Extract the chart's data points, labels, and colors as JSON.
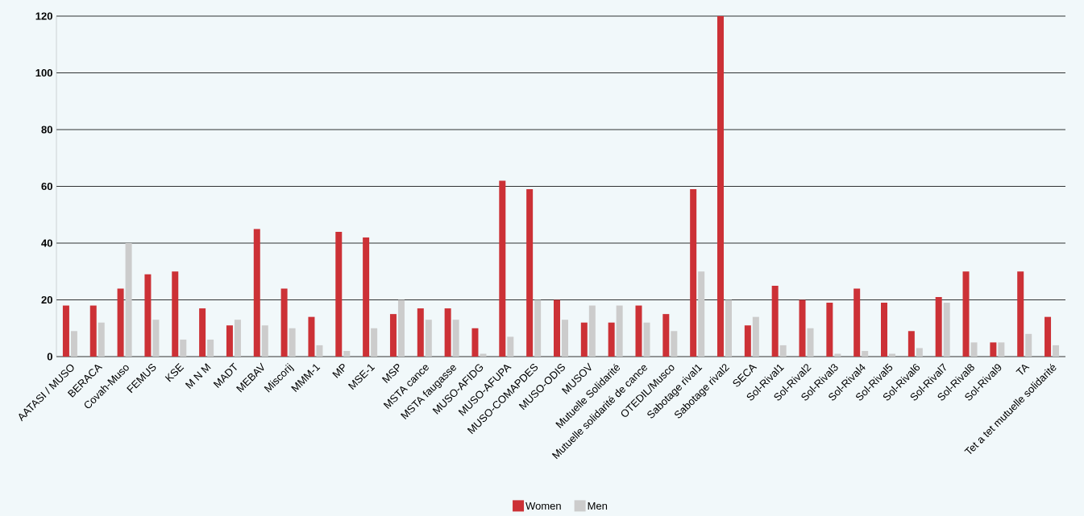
{
  "chart_data": {
    "type": "bar",
    "categories": [
      "AATASI / MUSO",
      "BERACA",
      "Covah-Muso",
      "FEMUS",
      "KSE",
      "M N M",
      "MADT",
      "MEBAV",
      "Miscorij",
      "MMM-1",
      "MP",
      "MSE-1",
      "MSP",
      "MSTA cance",
      "MSTA faugasse",
      "MUSO-AFIDG",
      "MUSO-AFUPA",
      "MUSO-COMAPDES",
      "MUSO-ODIS",
      "MUSOV",
      "Mutuelle Solidarité",
      "Mutuelle solidarité de cance",
      "OTEDIL/Musco",
      "Sabotage rival1",
      "Sabotage rival2",
      "SECA",
      "Sol-Rival1",
      "Sol-Rival2",
      "Sol-Rival3",
      "Sol-Rival4",
      "Sol-Rival5",
      "Sol-Rival6",
      "Sol-Rival7",
      "Sol-Rival8",
      "Sol-Rival9",
      "TA",
      "Tet a tet mutuelle solidarité"
    ],
    "series": [
      {
        "name": "Women",
        "color": "#cc3136",
        "values": [
          18,
          18,
          24,
          29,
          30,
          17,
          11,
          45,
          24,
          14,
          44,
          42,
          15,
          17,
          17,
          10,
          62,
          59,
          20,
          12,
          12,
          18,
          15,
          59,
          120,
          11,
          25,
          20,
          19,
          24,
          19,
          9,
          21,
          30,
          5,
          30,
          14
        ]
      },
      {
        "name": "Men",
        "color": "#cccccc",
        "values": [
          9,
          12,
          40,
          13,
          6,
          6,
          13,
          11,
          10,
          4,
          2,
          10,
          20,
          13,
          13,
          1,
          7,
          20,
          13,
          18,
          18,
          12,
          9,
          30,
          20,
          14,
          4,
          10,
          1,
          2,
          1,
          3,
          19,
          5,
          5,
          8,
          4
        ]
      }
    ],
    "ylim": [
      0,
      120
    ],
    "yticks": [
      0,
      20,
      40,
      60,
      80,
      100,
      120
    ],
    "grid": "y",
    "legend": "bottom"
  }
}
